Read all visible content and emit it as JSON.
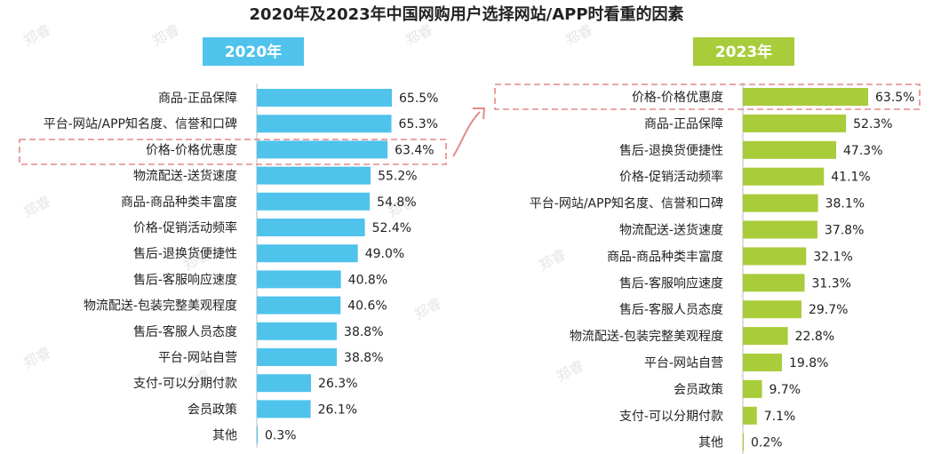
{
  "title": "2020年及2023年中国网购用户选择网站/APP时看重的因素",
  "watermark": "郑睿",
  "colors": {
    "series_2020": "#4fc3ec",
    "series_2023": "#a8cc3a",
    "highlight": "#e28a8a"
  },
  "chart_data": [
    {
      "type": "bar",
      "orientation": "horizontal",
      "series_name": "2020年",
      "title": "2020年",
      "unit": "%",
      "xlim": [
        0,
        70
      ],
      "highlight": "价格-价格优惠度",
      "categories": [
        "商品-正品保障",
        "平台-网站/APP知名度、信誉和口碑",
        "价格-价格优惠度",
        "物流配送-送货速度",
        "商品-商品种类丰富度",
        "价格-促销活动频率",
        "售后-退换货便捷性",
        "售后-客服响应速度",
        "物流配送-包装完整美观程度",
        "售后-客服人员态度",
        "平台-网站自营",
        "支付-可以分期付款",
        "会员政策",
        "其他"
      ],
      "values": [
        65.5,
        65.3,
        63.4,
        55.2,
        54.8,
        52.4,
        49.0,
        40.8,
        40.6,
        38.8,
        38.8,
        26.3,
        26.1,
        0.3
      ],
      "labels": [
        "65.5%",
        "65.3%",
        "63.4%",
        "55.2%",
        "54.8%",
        "52.4%",
        "49.0%",
        "40.8%",
        "40.6%",
        "38.8%",
        "38.8%",
        "26.3%",
        "26.1%",
        "0.3%"
      ]
    },
    {
      "type": "bar",
      "orientation": "horizontal",
      "series_name": "2023年",
      "title": "2023年",
      "unit": "%",
      "xlim": [
        0,
        70
      ],
      "highlight": "价格-价格优惠度",
      "categories": [
        "价格-价格优惠度",
        "商品-正品保障",
        "售后-退换货便捷性",
        "价格-促销活动频率",
        "平台-网站/APP知名度、信誉和口碑",
        "物流配送-送货速度",
        "商品-商品种类丰富度",
        "售后-客服响应速度",
        "售后-客服人员态度",
        "物流配送-包装完整美观程度",
        "平台-网站自营",
        "会员政策",
        "支付-可以分期付款",
        "其他"
      ],
      "values": [
        63.5,
        52.3,
        47.3,
        41.1,
        38.1,
        37.8,
        32.1,
        31.3,
        29.7,
        22.8,
        19.8,
        9.7,
        7.1,
        0.2
      ],
      "labels": [
        "63.5%",
        "52.3%",
        "47.3%",
        "41.1%",
        "38.1%",
        "37.8%",
        "32.1%",
        "31.3%",
        "29.7%",
        "22.8%",
        "19.8%",
        "9.7%",
        "7.1%",
        "0.2%"
      ]
    }
  ]
}
